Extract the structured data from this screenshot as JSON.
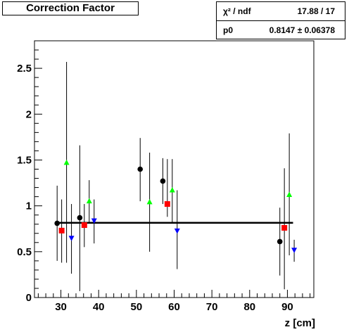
{
  "chart_data": {
    "type": "scatter",
    "title": "Correction Factor",
    "xlabel": "z [cm]",
    "ylabel": "",
    "xlim": [
      23,
      97
    ],
    "ylim": [
      0,
      2.8
    ],
    "xticks": [
      30,
      40,
      50,
      60,
      70,
      80,
      90
    ],
    "yticks": [
      0,
      0.5,
      1,
      1.5,
      2,
      2.5
    ],
    "ytick_labels": [
      "0",
      "0.5",
      "1",
      "1.5",
      "2",
      "2.5"
    ],
    "grid": false,
    "stats": {
      "chi2_label": "χ² / ndf",
      "chi2_value": "17.88 / 17",
      "p0_label": "p0",
      "p0_value": "0.8147 ± 0.06378"
    },
    "fit": {
      "value": 0.8147,
      "x_range": [
        28.5,
        91.5
      ]
    },
    "series": [
      {
        "marker": "circle",
        "color": "#000000",
        "points": [
          {
            "x": 29,
            "y": 0.81,
            "lo": 0.4,
            "hi": 1.22
          },
          {
            "x": 35,
            "y": 0.87,
            "lo": 0.07,
            "hi": 1.66
          },
          {
            "x": 51,
            "y": 1.4,
            "lo": 1.05,
            "hi": 1.74
          },
          {
            "x": 57,
            "y": 1.27,
            "lo": 1.02,
            "hi": 1.52
          },
          {
            "x": 88,
            "y": 0.61,
            "lo": 0.24,
            "hi": 0.98
          }
        ]
      },
      {
        "marker": "square",
        "color": "#ff0000",
        "points": [
          {
            "x": 30.2,
            "y": 0.73,
            "lo": 0.38,
            "hi": 1.07
          },
          {
            "x": 36.2,
            "y": 0.79,
            "lo": 0.55,
            "hi": 1.02
          },
          {
            "x": 58.2,
            "y": 1.02,
            "lo": 0.88,
            "hi": 1.51
          },
          {
            "x": 89.2,
            "y": 0.76,
            "lo": 0.09,
            "hi": 1.41
          }
        ]
      },
      {
        "marker": "triangle-up",
        "color": "#00ff00",
        "points": [
          {
            "x": 31.5,
            "y": 1.47,
            "lo": 0.38,
            "hi": 2.57
          },
          {
            "x": 37.5,
            "y": 1.05,
            "lo": 0.82,
            "hi": 1.28
          },
          {
            "x": 53.5,
            "y": 1.04,
            "lo": 0.5,
            "hi": 1.58
          },
          {
            "x": 59.5,
            "y": 1.17,
            "lo": 0.82,
            "hi": 1.51
          },
          {
            "x": 90.5,
            "y": 1.12,
            "lo": 0.46,
            "hi": 1.79
          }
        ]
      },
      {
        "marker": "triangle-down",
        "color": "#0000ff",
        "points": [
          {
            "x": 32.8,
            "y": 0.65,
            "lo": 0.26,
            "hi": 1.02
          },
          {
            "x": 38.8,
            "y": 0.84,
            "lo": 0.59,
            "hi": 1.07
          },
          {
            "x": 60.8,
            "y": 0.73,
            "lo": 0.31,
            "hi": 1.17
          },
          {
            "x": 91.8,
            "y": 0.52,
            "lo": 0.39,
            "hi": 0.63
          }
        ]
      }
    ]
  }
}
